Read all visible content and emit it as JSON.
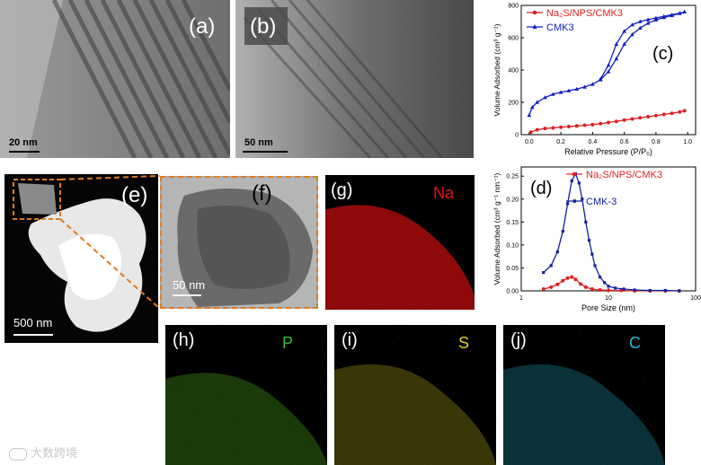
{
  "panels": {
    "a": {
      "label": "(a)",
      "scalebar": "20 nm"
    },
    "b": {
      "label": "(b)",
      "scalebar": "50 nm"
    },
    "e": {
      "label": "(e)",
      "scalebar": "500 nm"
    },
    "f": {
      "label": "(f)",
      "scalebar": "50 nm"
    },
    "g": {
      "label": "(g)",
      "element": "Na",
      "color": "#e01010"
    },
    "h": {
      "label": "(h)",
      "element": "P",
      "color": "#2fbf2f"
    },
    "i": {
      "label": "(i)",
      "element": "S",
      "color": "#d8d020"
    },
    "j": {
      "label": "(j)",
      "element": "C",
      "color": "#22b8d8"
    }
  },
  "watermark": "大数跨境",
  "chart_data": [
    {
      "panel_label": "(c)",
      "type": "line",
      "xlabel": "Relative Pressure (P/P₀)",
      "ylabel": "Volume Adsorbed (cm³ g⁻¹)",
      "xlim": [
        -0.05,
        1.05
      ],
      "ylim": [
        0,
        800
      ],
      "xticks": [
        "0.0",
        "0.2",
        "0.4",
        "0.6",
        "0.8",
        "1.0"
      ],
      "yticks": [
        "0",
        "200",
        "400",
        "600",
        "800"
      ],
      "legend_position": "top-right",
      "series": [
        {
          "name": "Na₂S/NPS/CMK3",
          "color": "#e02020",
          "marker": "circle",
          "x": [
            0.01,
            0.05,
            0.1,
            0.15,
            0.2,
            0.25,
            0.3,
            0.35,
            0.4,
            0.45,
            0.5,
            0.55,
            0.6,
            0.65,
            0.7,
            0.75,
            0.8,
            0.85,
            0.9,
            0.95,
            0.98
          ],
          "y": [
            15,
            30,
            38,
            42,
            46,
            50,
            54,
            58,
            62,
            68,
            75,
            82,
            90,
            97,
            104,
            111,
            118,
            125,
            132,
            140,
            148
          ]
        },
        {
          "name": "CMK3",
          "color": "#1020c0",
          "marker": "triangle",
          "x": [
            0.0,
            0.02,
            0.05,
            0.1,
            0.15,
            0.2,
            0.25,
            0.3,
            0.35,
            0.4,
            0.45,
            0.5,
            0.55,
            0.6,
            0.65,
            0.7,
            0.75,
            0.8,
            0.85,
            0.9,
            0.95,
            0.98
          ],
          "y": [
            120,
            170,
            200,
            230,
            250,
            262,
            272,
            282,
            295,
            312,
            340,
            390,
            470,
            560,
            620,
            660,
            690,
            710,
            725,
            738,
            750,
            760
          ]
        },
        {
          "name": "",
          "color": "#1020c0",
          "marker": "triangle",
          "x": [
            0.98,
            0.95,
            0.9,
            0.85,
            0.8,
            0.75,
            0.7,
            0.65,
            0.6,
            0.55,
            0.5,
            0.45
          ],
          "y": [
            760,
            752,
            742,
            732,
            722,
            712,
            700,
            680,
            640,
            560,
            430,
            345
          ]
        }
      ]
    },
    {
      "panel_label": "(d)",
      "type": "line",
      "xlabel": "Pore Size (nm)",
      "ylabel": "Volume Adsorbed (cm³ g⁻¹ nm⁻¹)",
      "xscale": "log",
      "xlim": [
        1,
        100
      ],
      "ylim": [
        0,
        0.27
      ],
      "xticks": [
        "1",
        "10",
        "100"
      ],
      "yticks": [
        "0.00",
        "0.05",
        "0.10",
        "0.15",
        "0.20",
        "0.25"
      ],
      "legend_position": "top-right",
      "series": [
        {
          "name": "Na₂S/NPS/CMK3",
          "color": "#e02020",
          "marker": "circle",
          "x": [
            1.8,
            2.2,
            2.6,
            3.0,
            3.4,
            3.8,
            4.2,
            4.8,
            5.5,
            6.5,
            8,
            10,
            14,
            20,
            30,
            45,
            65
          ],
          "y": [
            0.004,
            0.008,
            0.014,
            0.022,
            0.028,
            0.03,
            0.025,
            0.015,
            0.008,
            0.004,
            0.002,
            0.001,
            0.001,
            0.0,
            0.0,
            0.0,
            0.0
          ]
        },
        {
          "name": "CMK-3",
          "color": "#1020a0",
          "marker": "square",
          "x": [
            1.8,
            2.2,
            2.6,
            3.0,
            3.4,
            3.8,
            4.2,
            4.6,
            5.0,
            5.5,
            6.0,
            6.5,
            7.0,
            8.0,
            9.0,
            10,
            12,
            15,
            20,
            30,
            45,
            65
          ],
          "y": [
            0.04,
            0.055,
            0.085,
            0.13,
            0.19,
            0.24,
            0.255,
            0.235,
            0.2,
            0.15,
            0.11,
            0.08,
            0.055,
            0.03,
            0.018,
            0.01,
            0.006,
            0.004,
            0.002,
            0.001,
            0.001,
            0.0
          ]
        }
      ]
    }
  ]
}
